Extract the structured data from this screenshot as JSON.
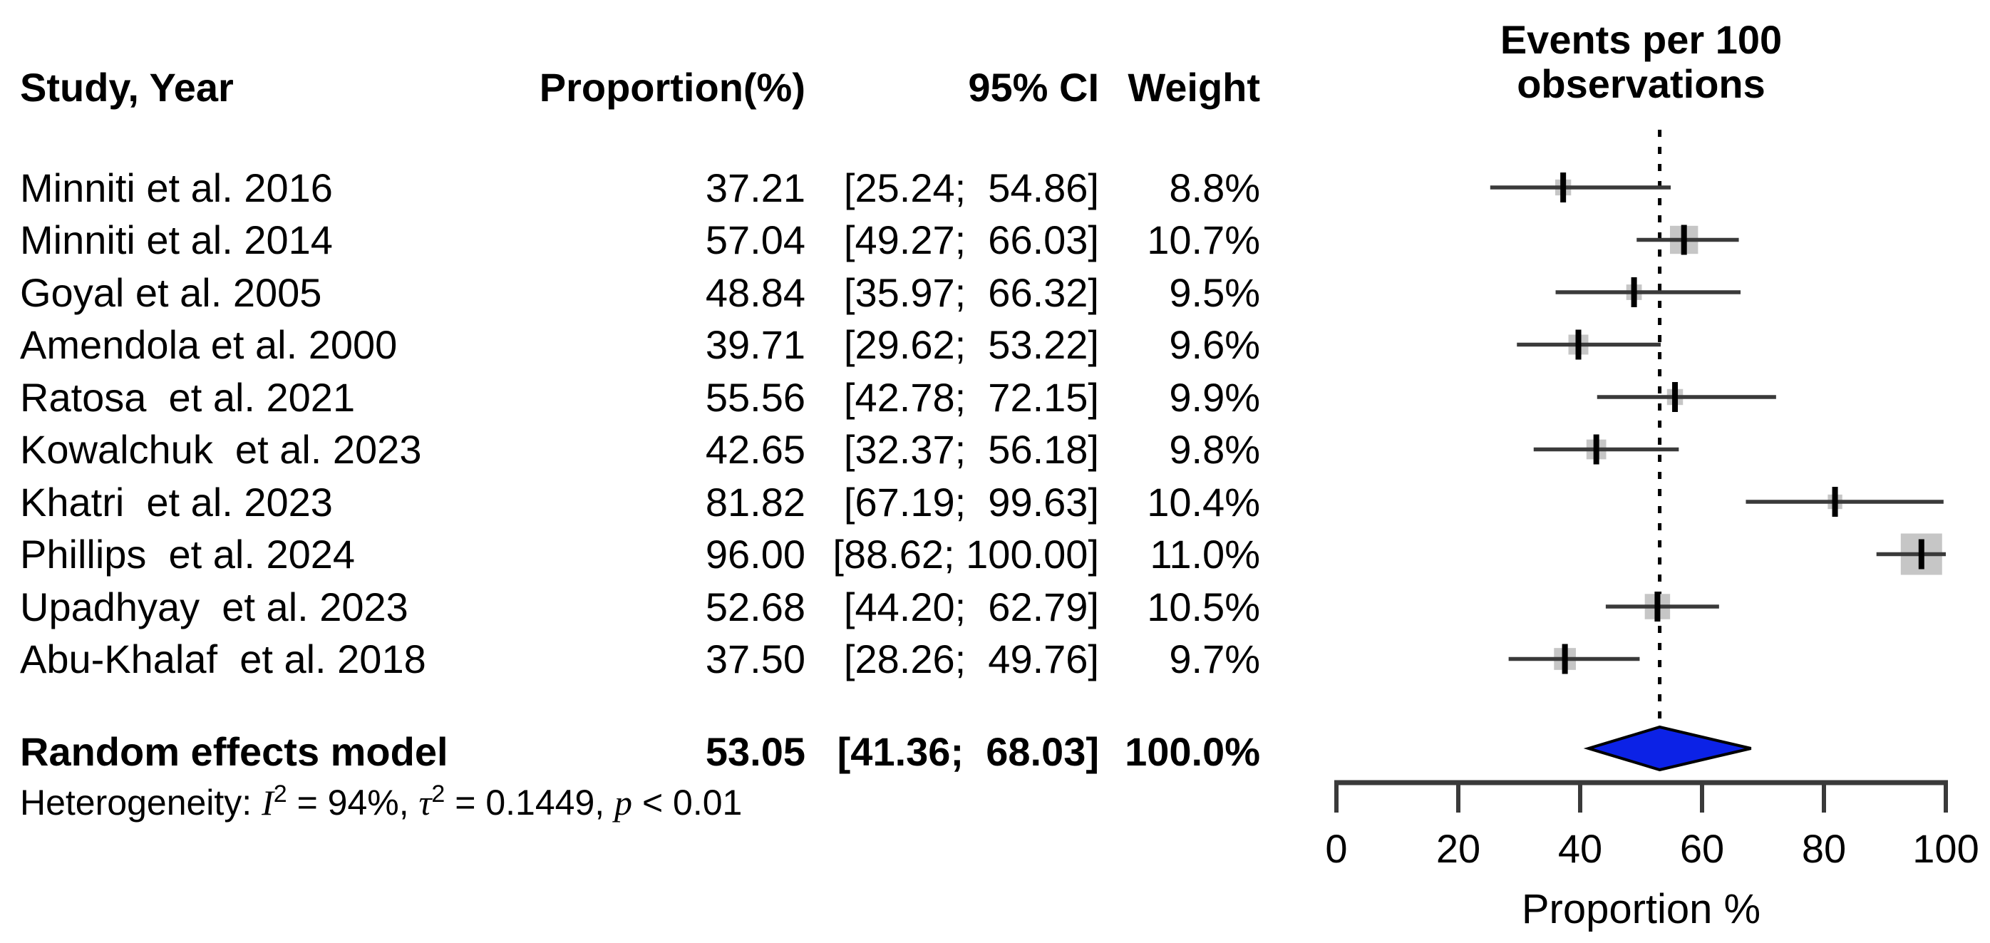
{
  "table": {
    "header": {
      "study": "Study, Year",
      "proportion": "Proportion(%)",
      "ci": "95% CI",
      "weight": "Weight"
    },
    "rows": [
      {
        "study": "Minniti et al. 2016",
        "proportion": "37.21",
        "ci": "[25.24;  54.86]",
        "weight": "8.8%"
      },
      {
        "study": "Minniti et al. 2014",
        "proportion": "57.04",
        "ci": "[49.27;  66.03]",
        "weight": "10.7%"
      },
      {
        "study": "Goyal et al. 2005",
        "proportion": "48.84",
        "ci": "[35.97;  66.32]",
        "weight": "9.5%"
      },
      {
        "study": "Amendola et al. 2000",
        "proportion": "39.71",
        "ci": "[29.62;  53.22]",
        "weight": "9.6%"
      },
      {
        "study": "Ratosa  et al. 2021",
        "proportion": "55.56",
        "ci": "[42.78;  72.15]",
        "weight": "9.9%"
      },
      {
        "study": "Kowalchuk  et al. 2023",
        "proportion": "42.65",
        "ci": "[32.37;  56.18]",
        "weight": "9.8%"
      },
      {
        "study": "Khatri  et al. 2023",
        "proportion": "81.82",
        "ci": "[67.19;  99.63]",
        "weight": "10.4%"
      },
      {
        "study": "Phillips  et al. 2024",
        "proportion": "96.00",
        "ci": "[88.62; 100.00]",
        "weight": "11.0%"
      },
      {
        "study": "Upadhyay  et al. 2023",
        "proportion": "52.68",
        "ci": "[44.20;  62.79]",
        "weight": "10.5%"
      },
      {
        "study": "Abu-Khalaf  et al. 2018",
        "proportion": "37.50",
        "ci": "[28.26;  49.76]",
        "weight": "9.7%"
      }
    ],
    "summary": {
      "study": "Random effects model",
      "proportion": "53.05",
      "ci": "[41.36;  68.03]",
      "weight": "100.0%"
    },
    "heterogeneity": {
      "label": "Heterogeneity: ",
      "i_symbol": "I",
      "i_exp": "2",
      "seg1": " = 94%, ",
      "tau_symbol": "τ",
      "tau_exp": "2",
      "seg2": " = 0.1449, ",
      "p_symbol": "p",
      "seg3": " < 0.01"
    }
  },
  "plot": {
    "title_line1": "Events per 100",
    "title_line2": "observations",
    "xlabel": "Proportion %",
    "colors": {
      "diamond": "#0c22e6",
      "square": "#c6c6c6",
      "ci_line": "#3a3a3a",
      "point_tick": "#000000",
      "axis": "#3a3a3a",
      "reference_line": "#000000"
    }
  },
  "chart_data": {
    "type": "forest",
    "title": "Events per 100 observations",
    "xlabel": "Proportion %",
    "xlim": [
      0,
      100
    ],
    "xticks": [
      0,
      20,
      40,
      60,
      80,
      100
    ],
    "reference_line": 53.05,
    "grid": false,
    "studies": [
      {
        "label": "Minniti et al. 2016",
        "est": 37.21,
        "lo": 25.24,
        "hi": 54.86,
        "weight": 8.8
      },
      {
        "label": "Minniti et al. 2014",
        "est": 57.04,
        "lo": 49.27,
        "hi": 66.03,
        "weight": 10.7
      },
      {
        "label": "Goyal et al. 2005",
        "est": 48.84,
        "lo": 35.97,
        "hi": 66.32,
        "weight": 9.5
      },
      {
        "label": "Amendola et al. 2000",
        "est": 39.71,
        "lo": 29.62,
        "hi": 53.22,
        "weight": 9.6
      },
      {
        "label": "Ratosa et al. 2021",
        "est": 55.56,
        "lo": 42.78,
        "hi": 72.15,
        "weight": 9.9
      },
      {
        "label": "Kowalchuk et al. 2023",
        "est": 42.65,
        "lo": 32.37,
        "hi": 56.18,
        "weight": 9.8
      },
      {
        "label": "Khatri et al. 2023",
        "est": 81.82,
        "lo": 67.19,
        "hi": 99.63,
        "weight": 10.4
      },
      {
        "label": "Phillips et al. 2024",
        "est": 96.0,
        "lo": 88.62,
        "hi": 100.0,
        "weight": 11.0
      },
      {
        "label": "Upadhyay et al. 2023",
        "est": 52.68,
        "lo": 44.2,
        "hi": 62.79,
        "weight": 10.5
      },
      {
        "label": "Abu-Khalaf et al. 2018",
        "est": 37.5,
        "lo": 28.26,
        "hi": 49.76,
        "weight": 9.7
      }
    ],
    "pooled": {
      "label": "Random effects model",
      "est": 53.05,
      "lo": 41.36,
      "hi": 68.03,
      "weight": 100.0
    },
    "heterogeneity": {
      "I2": "94%",
      "tau2": "0.1449",
      "p": "< 0.01"
    }
  }
}
